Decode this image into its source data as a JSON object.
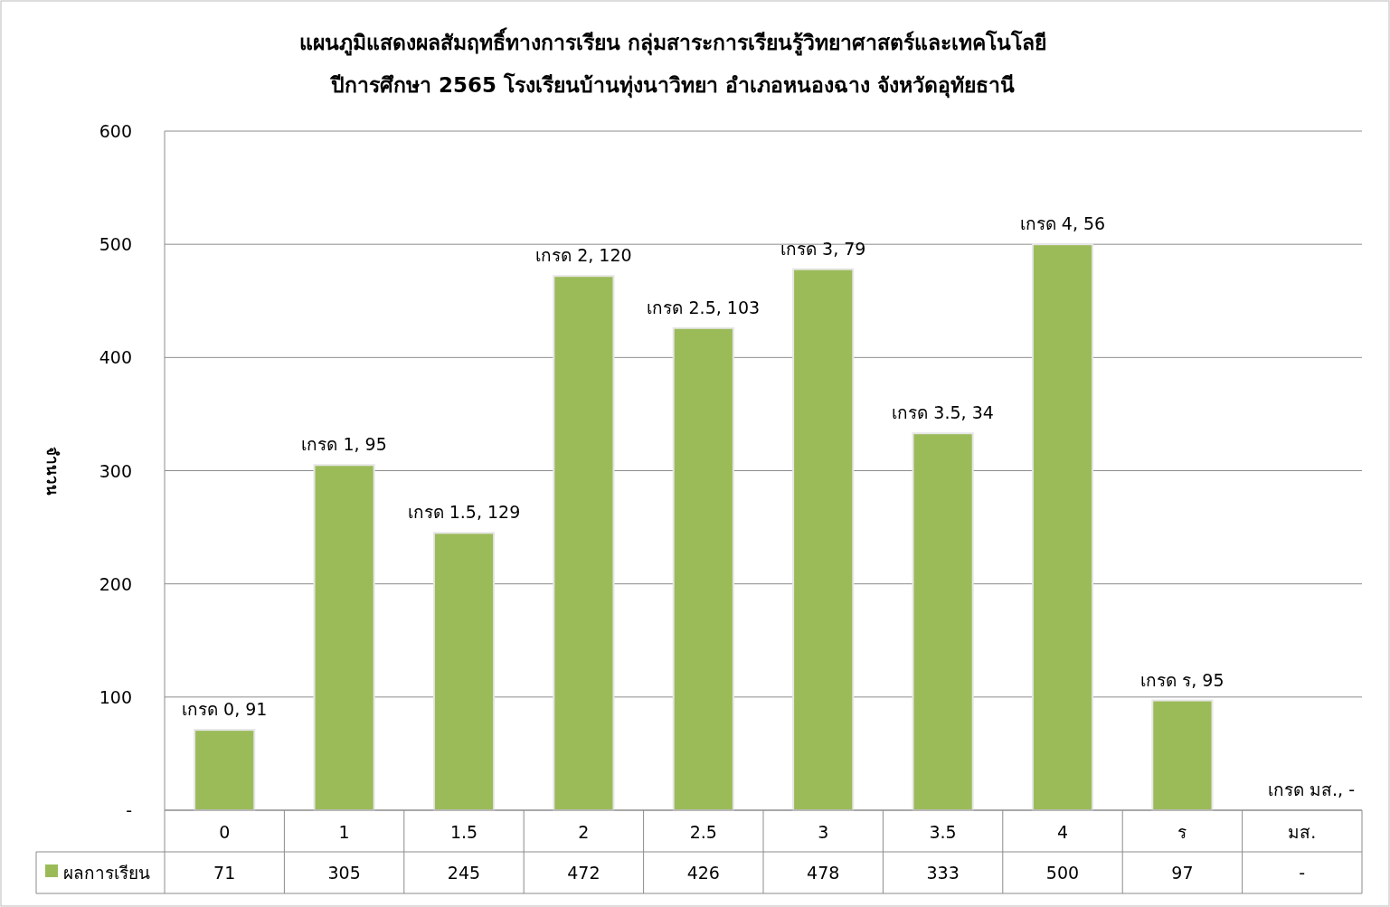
{
  "chart_data": {
    "type": "bar",
    "title": "แผนภูมิแสดงผลสัมฤทธิ์ทางการเรียน กลุ่มสาระการเรียนรู้วิทยาศาสตร์และเทคโนโลยี\nปีการศึกษา 2565 โรงเรียนบ้านทุ่งนาวิทยา อำเภอหนองฉาง จังหวัดอุทัยธานี",
    "ylabel": "จำนวน",
    "categories": [
      "0",
      "1",
      "1.5",
      "2",
      "2.5",
      "3",
      "3.5",
      "4",
      "ร",
      "มส."
    ],
    "series": [
      {
        "name": "ผลการเรียน",
        "color": "#9bbb59",
        "values": [
          71,
          305,
          245,
          472,
          426,
          478,
          333,
          500,
          97,
          null
        ],
        "value_labels": [
          "71",
          "305",
          "245",
          "472",
          "426",
          "478",
          "333",
          "500",
          "97",
          "-"
        ]
      }
    ],
    "annotations": [
      {
        "text": "เกรด 0,  91",
        "x": "0",
        "y": 71
      },
      {
        "text": "เกรด 1,  95",
        "x": "1",
        "y": 305
      },
      {
        "text": "เกรด 1.5,  129",
        "x": "1.5",
        "y": 245
      },
      {
        "text": "เกรด 2,  120",
        "x": "2",
        "y": 472
      },
      {
        "text": "เกรด 2.5,  103",
        "x": "2.5",
        "y": 426
      },
      {
        "text": "เกรด 3,  79",
        "x": "3",
        "y": 478
      },
      {
        "text": "เกรด 3.5,  34",
        "x": "3.5",
        "y": 333
      },
      {
        "text": "เกรด  4,  56",
        "x": "4",
        "y": 500
      },
      {
        "text": "เกรด ร,  95",
        "x": "ร",
        "y": 97
      },
      "เกรด มส.,  -"
    ],
    "ylim": [
      0,
      600
    ],
    "yticks": [
      {
        "value": 0,
        "label": "-"
      },
      100,
      200,
      300,
      400,
      500,
      600
    ],
    "grid": "y",
    "legend": "bottom left"
  }
}
